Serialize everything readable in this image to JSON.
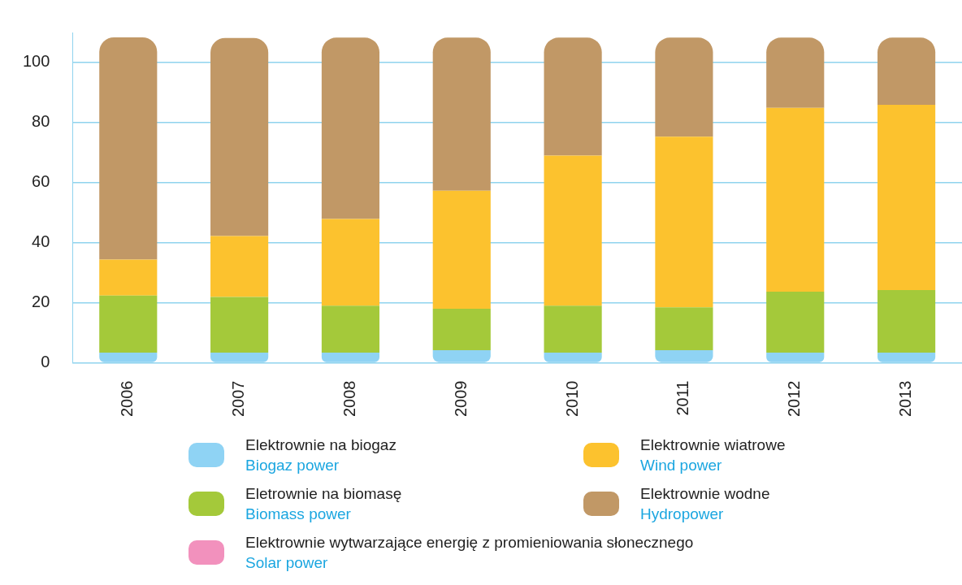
{
  "chart_data": {
    "type": "bar",
    "stacked": true,
    "categories": [
      "2006",
      "2007",
      "2008",
      "2009",
      "2010",
      "2011",
      "2012",
      "2013"
    ],
    "series": [
      {
        "name": "Elektrownie na biogaz\nBiogaz power",
        "color": "#8fd3f4",
        "values": [
          3.4,
          3.4,
          3.4,
          4.2,
          3.4,
          4.2,
          3.4,
          3.4
        ]
      },
      {
        "name": "Eletrownie na biomasę\nBiomass power",
        "color": "#a4c93a",
        "values": [
          19,
          18.5,
          15.6,
          13.8,
          15.6,
          14.3,
          20.3,
          20.8
        ]
      },
      {
        "name": "Elektrownie wiatrowe\nWind power",
        "color": "#fcc22e",
        "values": [
          12,
          20.3,
          28.9,
          39.3,
          50,
          56.8,
          61.2,
          61.7
        ]
      },
      {
        "name": "Elektrownie wodne\nHydropower",
        "color": "#c19866",
        "values": [
          74,
          66,
          60.4,
          51,
          39.3,
          33,
          23.4,
          22.4
        ]
      },
      {
        "name": "Elektrownie wytwarzające energię z promieniowania słonecznego\nSolar power",
        "color": "#f291bd",
        "values": [
          null,
          null,
          null,
          null,
          null,
          null,
          null,
          null
        ]
      }
    ],
    "ylim": [
      0,
      110
    ],
    "yticks": [
      0,
      20,
      40,
      60,
      80,
      100
    ],
    "grid": "y",
    "legend": "bottom"
  }
}
